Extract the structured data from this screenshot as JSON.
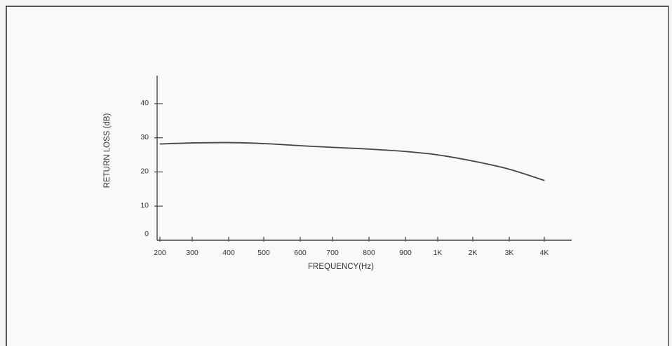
{
  "chart_data": {
    "type": "line",
    "xlabel": "FREQUENCY(Hz)",
    "ylabel": "RETURN LOSS (dB)",
    "ylim": [
      0,
      45
    ],
    "y_ticks": [
      "0",
      "10",
      "20",
      "30",
      "40"
    ],
    "y_tick_values": [
      0,
      10,
      20,
      30,
      40
    ],
    "x_categories": [
      "200",
      "300",
      "400",
      "500",
      "600",
      "700",
      "800",
      "900",
      "1K",
      "2K",
      "3K",
      "4K"
    ],
    "grid": false,
    "series": [
      {
        "x": [
          "200",
          "300",
          "400",
          "500",
          "600",
          "700",
          "800",
          "900",
          "1K",
          "2K",
          "3K",
          "4K"
        ],
        "y": [
          28.2,
          28.5,
          28.6,
          28.3,
          27.7,
          27.2,
          26.7,
          26.0,
          25.0,
          23.2,
          20.8,
          17.5
        ],
        "color": "#444444"
      }
    ]
  }
}
